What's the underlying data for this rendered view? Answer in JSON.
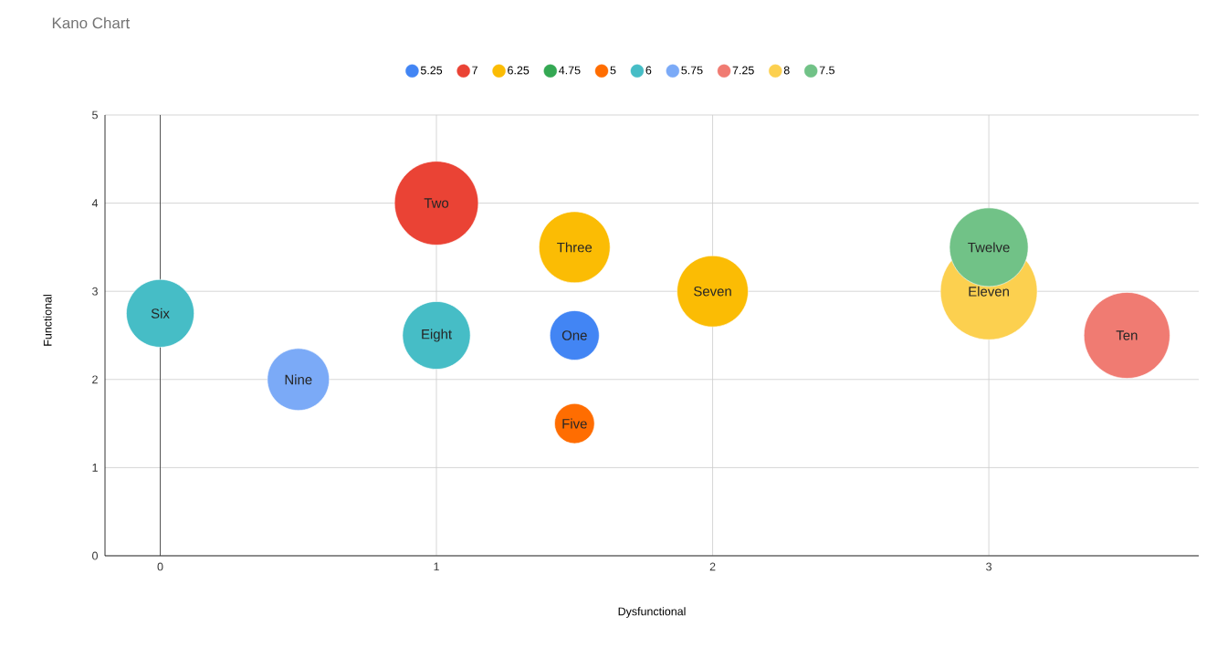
{
  "chart_data": {
    "type": "bubble",
    "title": "Kano Chart",
    "xlabel": "Dysfunctional",
    "ylabel": "Functional",
    "xlim": [
      -0.2,
      3.76
    ],
    "ylim": [
      0,
      5
    ],
    "xticks": [
      0,
      1,
      2,
      3
    ],
    "yticks": [
      0,
      1,
      2,
      3,
      4,
      5
    ],
    "grid": true,
    "legend": "top",
    "ref_lines": [
      {
        "axis": "x",
        "value": 0,
        "color": "#333333"
      }
    ],
    "series": [
      {
        "name": "5.25",
        "color": "#4285f4",
        "x": [
          1.5
        ],
        "values": [
          2.5
        ],
        "sizes": [
          0.26
        ]
      },
      {
        "name": "7",
        "color": "#ea4335",
        "x": [
          1
        ],
        "values": [
          4
        ],
        "sizes": [
          0.75
        ]
      },
      {
        "name": "6.25",
        "color": "#fbbc04",
        "x": [
          1.5,
          2
        ],
        "values": [
          3.5,
          3
        ],
        "sizes": [
          0.54,
          0.54
        ]
      },
      {
        "name": "4.75",
        "color": "#34a853",
        "x": [
          null
        ],
        "values": [
          null
        ],
        "sizes": [
          null
        ]
      },
      {
        "name": "5",
        "color": "#ff6d01",
        "x": [
          1.5
        ],
        "values": [
          1.5
        ],
        "sizes": [
          0.17
        ]
      },
      {
        "name": "6",
        "color": "#46bdc6",
        "x": [
          0,
          1
        ],
        "values": [
          2.75,
          2.5
        ],
        "sizes": [
          0.49,
          0.49
        ]
      },
      {
        "name": "5.75",
        "color": "#7baaf7",
        "x": [
          0.5
        ],
        "values": [
          2
        ],
        "sizes": [
          0.41
        ]
      },
      {
        "name": "7.25",
        "color": "#f07b72",
        "x": [
          3.5
        ],
        "values": [
          2.5
        ],
        "sizes": [
          0.79
        ]
      },
      {
        "name": "8",
        "color": "#fcd04f",
        "x": [
          3
        ],
        "values": [
          3
        ],
        "sizes": [
          1
        ]
      },
      {
        "name": "7.5",
        "color": "#71c287",
        "x": [
          3
        ],
        "values": [
          3.5
        ],
        "sizes": [
          0.66
        ]
      }
    ],
    "annotations": [
      {
        "text": "One",
        "x": 1.5,
        "y": 2.5
      },
      {
        "text": "Two",
        "x": 1,
        "y": 4
      },
      {
        "text": "Three",
        "x": 1.5,
        "y": 3.5
      },
      {
        "text": "Five",
        "x": 1.5,
        "y": 1.5
      },
      {
        "text": "Six",
        "x": 0,
        "y": 2.75
      },
      {
        "text": "Seven",
        "x": 2,
        "y": 3
      },
      {
        "text": "Eight",
        "x": 1,
        "y": 2.5
      },
      {
        "text": "Nine",
        "x": 0.5,
        "y": 2
      },
      {
        "text": "Ten",
        "x": 3.5,
        "y": 2.5
      },
      {
        "text": "Eleven",
        "x": 3,
        "y": 3
      },
      {
        "text": "Twelve",
        "x": 3,
        "y": 3.5
      }
    ]
  }
}
